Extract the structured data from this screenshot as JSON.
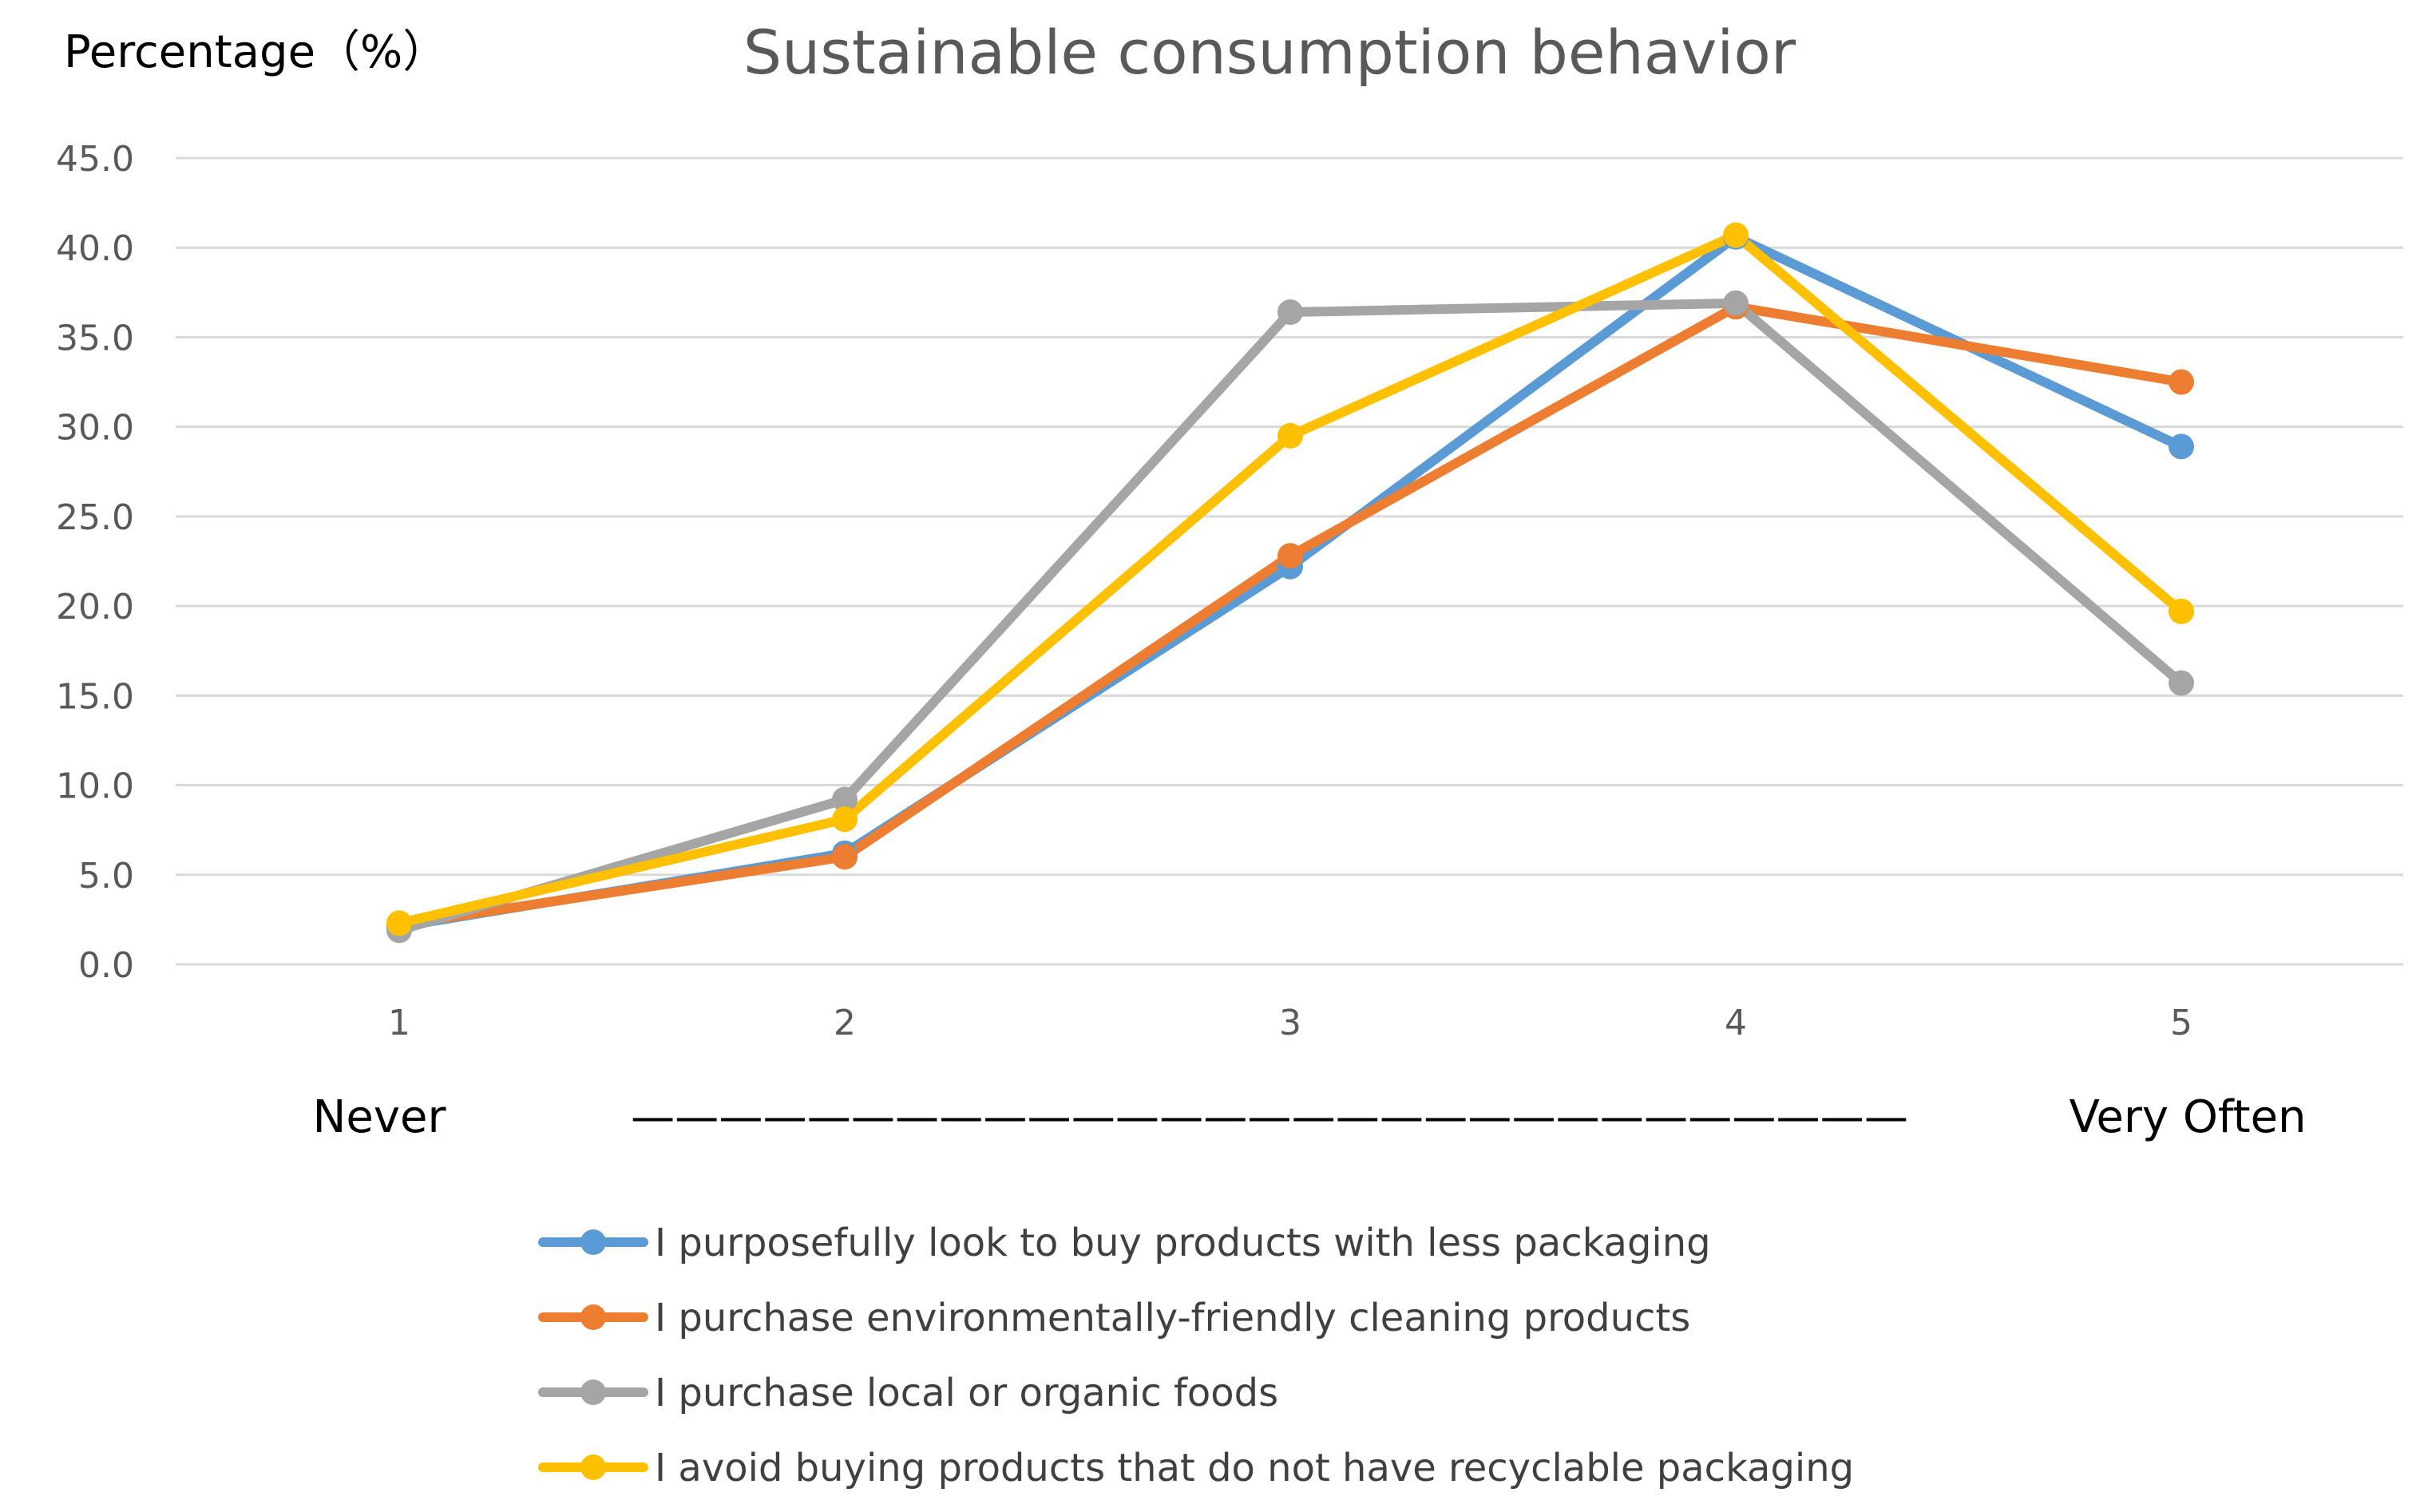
{
  "chart_data": {
    "type": "line",
    "title": "Sustainable consumption behavior",
    "ylabel": "Percentage（%）",
    "xlabel": "",
    "ylim": [
      0,
      45
    ],
    "yticks": [
      0,
      5,
      10,
      15,
      20,
      25,
      30,
      35,
      40,
      45
    ],
    "ytick_labels": [
      "0.0",
      "5.0",
      "10.0",
      "15.0",
      "20.0",
      "25.0",
      "30.0",
      "35.0",
      "40.0",
      "45.0"
    ],
    "categories": [
      "1",
      "2",
      "3",
      "4",
      "5"
    ],
    "scale_low_label": "Never",
    "scale_dash": "—————————————————————————————",
    "scale_high_label": "Very Often",
    "grid": true,
    "legend_position": "bottom",
    "series": [
      {
        "name": "I purposefully look to buy products with less packaging",
        "color": "#5B9BD5",
        "values": [
          2.1,
          6.2,
          22.2,
          40.6,
          28.9
        ]
      },
      {
        "name": "I purchase environmentally-friendly cleaning products",
        "color": "#ED7D31",
        "values": [
          2.2,
          6.0,
          22.8,
          36.7,
          32.5
        ]
      },
      {
        "name": "I purchase local or organic foods",
        "color": "#A5A5A5",
        "values": [
          1.9,
          9.2,
          36.4,
          36.9,
          15.7
        ]
      },
      {
        "name": "I avoid buying products that do not have recyclable packaging",
        "color": "#FFC000",
        "values": [
          2.3,
          8.1,
          29.5,
          40.7,
          19.7
        ]
      }
    ]
  }
}
